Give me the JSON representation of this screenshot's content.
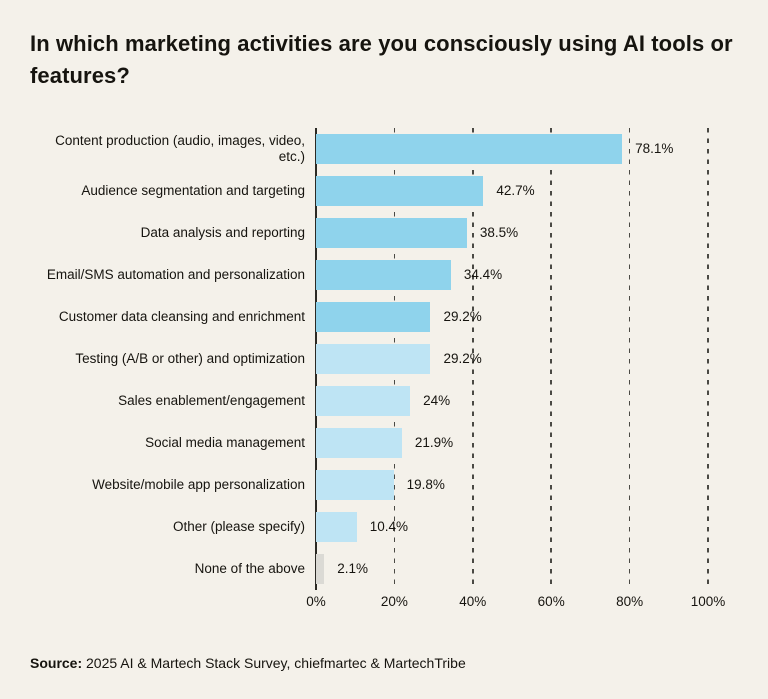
{
  "title": "In which marketing activities are you consciously using AI tools or features?",
  "source": {
    "label": "Source:",
    "text": " 2025 AI & Martech Stack Survey, chiefmartec & MartechTribe"
  },
  "colors": {
    "background": "#F4F1EA",
    "bar_medium_blue": "#8FD3EC",
    "bar_light_blue": "#BEE4F4",
    "bar_gray": "#DBDAD5",
    "axis": "#2B2A25",
    "gridline": "#4A4944",
    "text": "#16140F"
  },
  "chart_data": {
    "type": "bar",
    "orientation": "horizontal",
    "title": "In which marketing activities are you consciously using AI tools or features?",
    "xlabel": "",
    "ylabel": "",
    "xlim": [
      0,
      100
    ],
    "x_ticks": [
      "0%",
      "20%",
      "40%",
      "60%",
      "80%",
      "100%"
    ],
    "x_tick_values": [
      0,
      20,
      40,
      60,
      80,
      100
    ],
    "grid": "dashed-vertical",
    "legend": "none",
    "categories": [
      "Content production (audio, images, video, etc.)",
      "Audience segmentation and targeting",
      "Data analysis and reporting",
      "Email/SMS automation and personalization",
      "Customer data cleansing and enrichment",
      "Testing (A/B or other) and optimization",
      "Sales enablement/engagement",
      "Social media management",
      "Website/mobile app personalization",
      "Other (please specify)",
      "None of the above"
    ],
    "values": [
      78.1,
      42.7,
      38.5,
      34.4,
      29.2,
      29.2,
      24,
      21.9,
      19.8,
      10.4,
      2.1
    ],
    "value_labels": [
      "78.1%",
      "42.7%",
      "38.5%",
      "34.4%",
      "29.2%",
      "29.2%",
      "24%",
      "21.9%",
      "19.8%",
      "10.4%",
      "2.1%"
    ],
    "bar_colors": [
      "#8FD3EC",
      "#8FD3EC",
      "#8FD3EC",
      "#8FD3EC",
      "#8FD3EC",
      "#BEE4F4",
      "#BEE4F4",
      "#BEE4F4",
      "#BEE4F4",
      "#BEE4F4",
      "#DBDAD5"
    ]
  }
}
